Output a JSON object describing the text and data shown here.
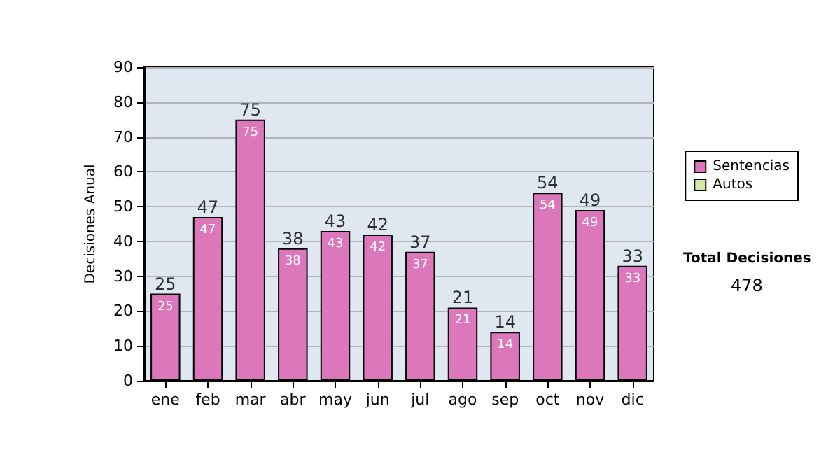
{
  "chart_data": {
    "type": "bar",
    "ylabel": "Decisiones Anual",
    "categories": [
      "ene",
      "feb",
      "mar",
      "abr",
      "may",
      "jun",
      "jul",
      "ago",
      "sep",
      "oct",
      "nov",
      "dic"
    ],
    "series": [
      {
        "name": "Sentencias",
        "color": "#dd77bb",
        "values": [
          25,
          47,
          75,
          38,
          43,
          42,
          37,
          21,
          14,
          54,
          49,
          33
        ],
        "value_labels": [
          "25",
          "47",
          "75",
          "38",
          "43",
          "42",
          "37",
          "21",
          "14",
          "54",
          "49",
          "33"
        ]
      },
      {
        "name": "Autos",
        "color": "#d4e8a4",
        "values": [
          0,
          0,
          0,
          0,
          0,
          0,
          0,
          0,
          0,
          0,
          0,
          0
        ]
      }
    ],
    "stacked": true,
    "totals": [
      "25",
      "47",
      "75",
      "38",
      "43",
      "42",
      "37",
      "21",
      "14",
      "54",
      "49",
      "33"
    ],
    "ylim": [
      0,
      90
    ],
    "yticks": [
      0,
      10,
      20,
      30,
      40,
      50,
      60,
      70,
      80,
      90
    ],
    "grid": "y",
    "legend": "right",
    "annotations": [
      "Total Decisiones",
      "478"
    ]
  }
}
